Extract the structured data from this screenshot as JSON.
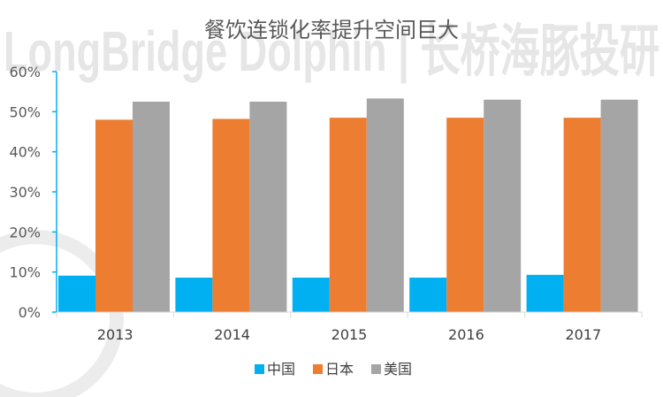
{
  "watermark": "LongBridge Dolphin | 长桥海豚投研",
  "chart_data": {
    "type": "bar",
    "title": "餐饮连锁化率提升空间巨大",
    "xlabel": "",
    "ylabel": "",
    "ylim": [
      0,
      0.6
    ],
    "yticks": [
      0,
      0.1,
      0.2,
      0.3,
      0.4,
      0.5,
      0.6
    ],
    "ytick_labels": [
      "0%",
      "10%",
      "20%",
      "30%",
      "40%",
      "50%",
      "60%"
    ],
    "categories": [
      "2013",
      "2014",
      "2015",
      "2016",
      "2017"
    ],
    "series": [
      {
        "name": "中国",
        "color": "#00b0f0",
        "values": [
          0.091,
          0.086,
          0.086,
          0.086,
          0.093
        ]
      },
      {
        "name": "日本",
        "color": "#ed7d31",
        "values": [
          0.48,
          0.482,
          0.485,
          0.485,
          0.485
        ]
      },
      {
        "name": "美国",
        "color": "#a5a5a5",
        "values": [
          0.525,
          0.525,
          0.533,
          0.53,
          0.53
        ]
      }
    ],
    "grid": false,
    "legend_position": "bottom"
  }
}
